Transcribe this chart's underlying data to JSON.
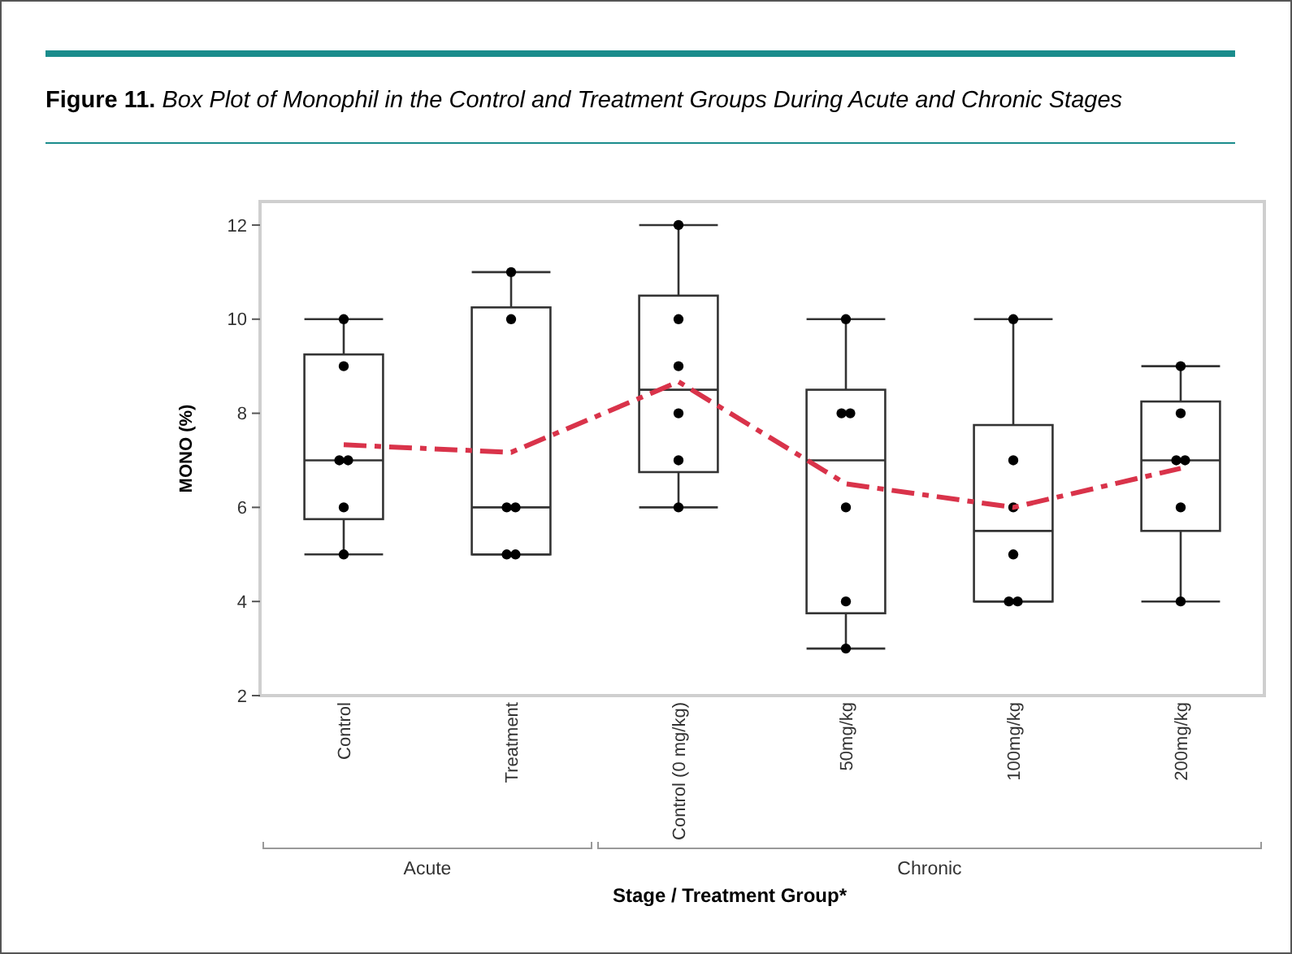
{
  "chart_data": {
    "type": "box",
    "title": "Figure 11. Box Plot of Monophil in the Control and Treatment Groups During Acute and Chronic Stages",
    "xlabel": "Stage / Treatment Group*",
    "ylabel": "MONO (%)",
    "annotations": [
      "Acute",
      "Chronic"
    ],
    "categories": [
      "Control",
      "Treatment",
      "Control (0 mg/kg)",
      "50mg/kg",
      "100mg/kg",
      "200mg/kg"
    ],
    "ylim": [
      2,
      12.5
    ],
    "yticks": [
      2,
      4,
      6,
      8,
      10,
      12
    ],
    "grid": false,
    "series": [
      {
        "color": "#333333",
        "boxes": [
          {
            "low": 5,
            "q1": 5.75,
            "median": 7,
            "q3": 9.25,
            "high": 10
          },
          {
            "low": 5,
            "q1": 5,
            "median": 6,
            "q3": 10.25,
            "high": 11
          },
          {
            "low": 6,
            "q1": 6.75,
            "median": 8.5,
            "q3": 10.5,
            "high": 12
          },
          {
            "low": 3,
            "q1": 3.75,
            "median": 7,
            "q3": 8.5,
            "high": 10
          },
          {
            "low": 4,
            "q1": 4,
            "median": 5.5,
            "q3": 7.75,
            "high": 10
          },
          {
            "low": 4,
            "q1": 5.5,
            "median": 7,
            "q3": 8.25,
            "high": 9
          }
        ]
      },
      {
        "type": "scatter",
        "color": "#000000",
        "marker": "circle",
        "x": [
          "Control",
          "Control",
          "Control",
          "Control",
          "Control",
          "Control",
          "Treatment",
          "Treatment",
          "Treatment",
          "Treatment",
          "Treatment",
          "Treatment",
          "Control (0 mg/kg)",
          "Control (0 mg/kg)",
          "Control (0 mg/kg)",
          "Control (0 mg/kg)",
          "Control (0 mg/kg)",
          "Control (0 mg/kg)",
          "50mg/kg",
          "50mg/kg",
          "50mg/kg",
          "50mg/kg",
          "50mg/kg",
          "50mg/kg",
          "100mg/kg",
          "100mg/kg",
          "100mg/kg",
          "100mg/kg",
          "100mg/kg",
          "100mg/kg",
          "200mg/kg",
          "200mg/kg",
          "200mg/kg",
          "200mg/kg",
          "200mg/kg",
          "200mg/kg"
        ],
        "values": [
          10,
          9,
          7,
          7,
          6,
          5,
          11,
          10,
          6,
          6,
          5,
          5,
          12,
          10,
          9,
          8,
          7,
          6,
          10,
          8,
          8,
          6,
          4,
          3,
          10,
          7,
          6,
          5,
          4,
          4,
          9,
          8,
          7,
          7,
          6,
          4
        ]
      },
      {
        "type": "line",
        "color": "#d9334a",
        "line_style": "dashed",
        "values": [
          7.33,
          7.17,
          8.67,
          6.5,
          6.0,
          6.83
        ]
      }
    ]
  }
}
